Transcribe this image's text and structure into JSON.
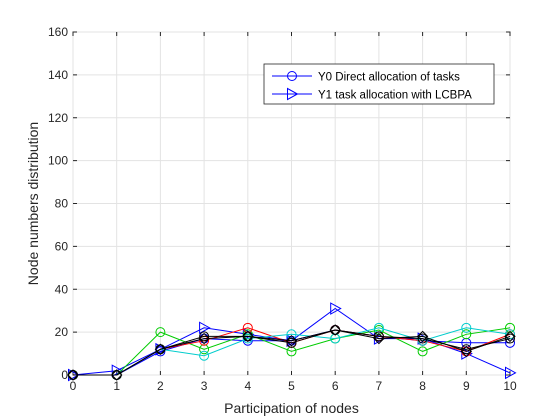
{
  "chart_data": {
    "type": "line",
    "xlabel": "Participation of nodes",
    "ylabel": "Node numbers distribution",
    "xlim": [
      0,
      10
    ],
    "ylim": [
      0,
      160
    ],
    "xticks": [
      0,
      1,
      2,
      3,
      4,
      5,
      6,
      7,
      8,
      9,
      10
    ],
    "yticks": [
      0,
      20,
      40,
      60,
      80,
      100,
      120,
      140,
      160
    ],
    "grid": true,
    "legend_position": "top-right",
    "x": [
      0,
      1,
      2,
      3,
      4,
      5,
      6,
      7,
      8,
      9,
      10
    ],
    "series": [
      {
        "name": "Y0 Direct allocation of tasks",
        "color": "#0000ff",
        "marker": "circle",
        "values": [
          0,
          0,
          11,
          17,
          16,
          16,
          21,
          18,
          16,
          15,
          15
        ]
      },
      {
        "name": "Y1 task allocation with LCBPA",
        "color": "#0000ff",
        "marker": "triangle-right",
        "values": [
          0,
          2,
          12,
          22,
          19,
          16,
          31,
          17,
          17,
          10,
          1
        ]
      },
      {
        "color": "#00cc00",
        "marker": "circle",
        "values": [
          0,
          0,
          20,
          12,
          19,
          11,
          17,
          21,
          11,
          19,
          22
        ]
      },
      {
        "color": "#ff0000",
        "marker": "circle",
        "values": [
          0,
          0,
          12,
          16,
          22,
          15,
          21,
          18,
          16,
          11,
          19
        ]
      },
      {
        "color": "#00cccc",
        "marker": "circle",
        "values": [
          0,
          0,
          12,
          9,
          17,
          19,
          17,
          22,
          16,
          22,
          19
        ]
      },
      {
        "color": "#000000",
        "marker": "diamond",
        "values": [
          0,
          0,
          12,
          17,
          18,
          16,
          21,
          17,
          18,
          11,
          18
        ]
      },
      {
        "color": "#000000",
        "marker": "circle",
        "values": [
          0,
          0,
          12,
          18,
          18,
          15,
          21,
          18,
          17,
          12,
          17
        ]
      }
    ]
  }
}
